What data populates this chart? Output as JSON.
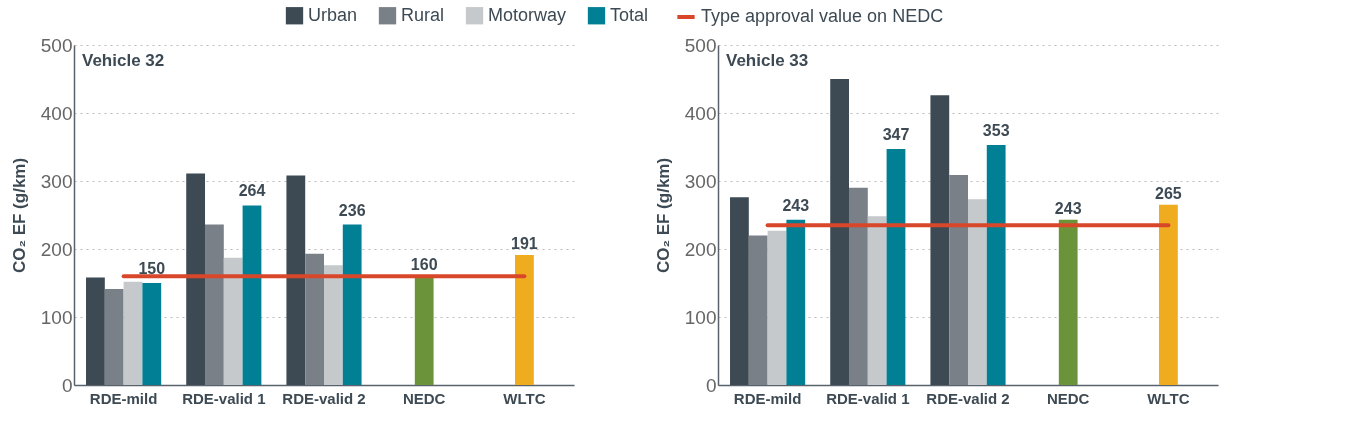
{
  "chart_data": [
    {
      "type": "bar",
      "title": "Vehicle 32",
      "ylabel": "CO₂ EF (g/km)",
      "categories": [
        "RDE-mild",
        "RDE-valid 1",
        "RDE-valid 2",
        "NEDC",
        "WLTC"
      ],
      "series": [
        {
          "name": "Urban",
          "color": "#3d4a54",
          "values": [
            158,
            311,
            308,
            null,
            null
          ]
        },
        {
          "name": "Rural",
          "color": "#7a8088",
          "values": [
            141,
            236,
            193,
            null,
            null
          ]
        },
        {
          "name": "Motorway",
          "color": "#c5c9cc",
          "values": [
            152,
            187,
            176,
            null,
            null
          ]
        },
        {
          "name": "Total",
          "color": "#007f95",
          "values": [
            150,
            264,
            236,
            null,
            null
          ],
          "value_labels": [
            "150",
            "264",
            "236",
            null,
            null
          ]
        },
        {
          "colors": [
            null,
            null,
            null,
            "#6b943a",
            "#efac1f"
          ],
          "values": [
            null,
            null,
            null,
            160,
            191
          ],
          "value_labels": [
            null,
            null,
            null,
            "160",
            "191"
          ]
        }
      ],
      "ref_lines": [
        {
          "axis": "y",
          "value": 160,
          "label": "Type approval value on NEDC",
          "color": "#d9472b"
        }
      ],
      "ylim": [
        0,
        500
      ],
      "yticks": [
        0,
        100,
        200,
        300,
        400,
        500
      ],
      "grid": "y",
      "legend": "top"
    },
    {
      "type": "bar",
      "title": "Vehicle 33",
      "ylabel": "CO₂ EF (g/km)",
      "categories": [
        "RDE-mild",
        "RDE-valid 1",
        "RDE-valid 2",
        "NEDC",
        "WLTC"
      ],
      "series": [
        {
          "name": "Urban",
          "color": "#3d4a54",
          "values": [
            276,
            450,
            426,
            null,
            null
          ]
        },
        {
          "name": "Rural",
          "color": "#7a8088",
          "values": [
            220,
            290,
            309,
            null,
            null
          ]
        },
        {
          "name": "Motorway",
          "color": "#c5c9cc",
          "values": [
            227,
            248,
            273,
            null,
            null
          ]
        },
        {
          "name": "Total",
          "color": "#007f95",
          "values": [
            243,
            347,
            353,
            null,
            null
          ],
          "value_labels": [
            "243",
            "347",
            "353",
            null,
            null
          ]
        },
        {
          "colors": [
            null,
            null,
            null,
            "#6b943a",
            "#efac1f"
          ],
          "values": [
            null,
            null,
            null,
            243,
            265
          ],
          "value_labels": [
            null,
            null,
            null,
            "243",
            "265"
          ]
        }
      ],
      "ref_lines": [
        {
          "axis": "y",
          "value": 235,
          "color": "#d9472b"
        }
      ],
      "ylim": [
        0,
        500
      ],
      "yticks": [
        0,
        100,
        200,
        300,
        400,
        500
      ],
      "grid": "y",
      "legend": "top"
    }
  ]
}
